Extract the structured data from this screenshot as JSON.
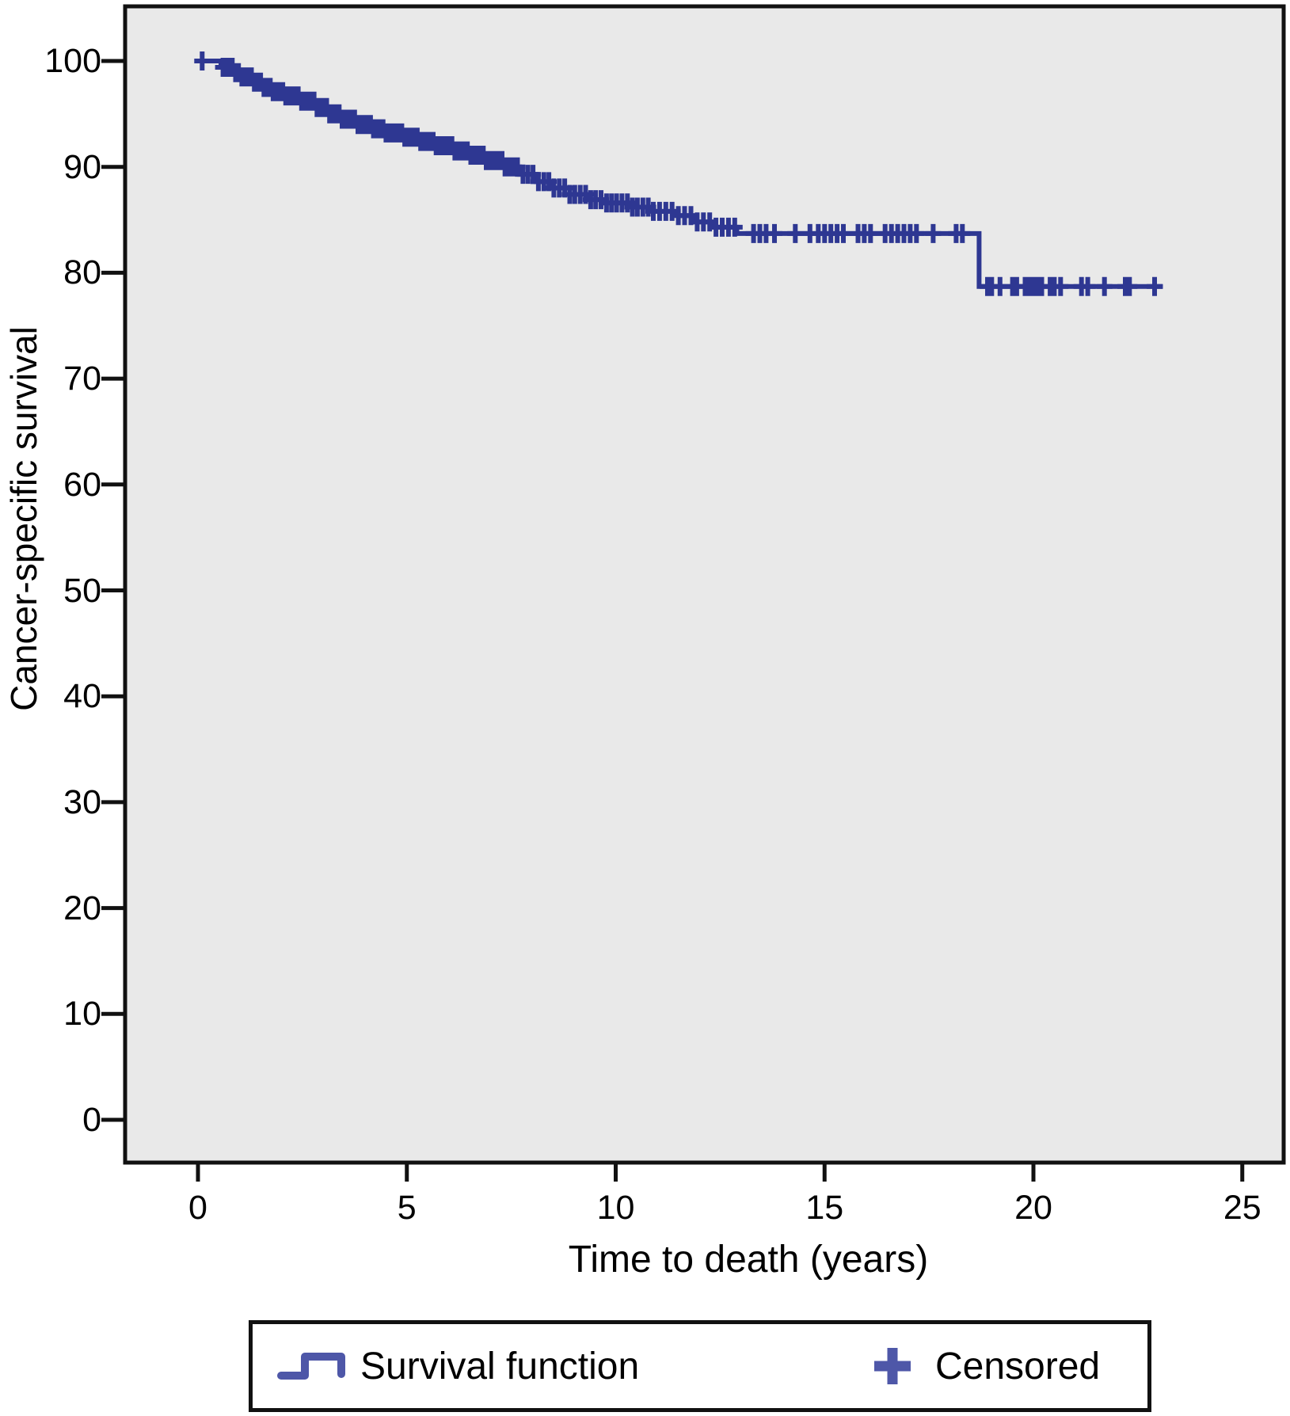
{
  "chart_data": {
    "type": "line",
    "subtype": "kaplan_meier_step",
    "title": "",
    "xlabel": "Time to death (years)",
    "ylabel": "Cancer-specific survival",
    "xlim": [
      0,
      26
    ],
    "ylim": [
      0,
      100
    ],
    "x_ticks": [
      0,
      5,
      10,
      15,
      20,
      25
    ],
    "y_ticks": [
      100,
      90,
      80,
      70,
      60,
      50,
      40,
      30,
      20,
      10,
      0
    ],
    "grid": false,
    "legend_position": "bottom",
    "series": [
      {
        "name": "Survival function",
        "type": "step",
        "color": "#2e3792",
        "points": [
          [
            0,
            100
          ],
          [
            0.55,
            99.4
          ],
          [
            0.85,
            98.9
          ],
          [
            1.05,
            98.5
          ],
          [
            1.3,
            98.0
          ],
          [
            1.55,
            97.5
          ],
          [
            1.8,
            97.1
          ],
          [
            2.1,
            96.7
          ],
          [
            2.45,
            96.2
          ],
          [
            2.8,
            95.6
          ],
          [
            3.1,
            95.0
          ],
          [
            3.45,
            94.5
          ],
          [
            3.8,
            94.0
          ],
          [
            4.15,
            93.6
          ],
          [
            4.5,
            93.2
          ],
          [
            4.9,
            92.8
          ],
          [
            5.3,
            92.4
          ],
          [
            5.7,
            92.0
          ],
          [
            6.1,
            91.5
          ],
          [
            6.5,
            91.1
          ],
          [
            6.9,
            90.6
          ],
          [
            7.3,
            90.0
          ],
          [
            7.7,
            89.3
          ],
          [
            8.1,
            88.6
          ],
          [
            8.5,
            88.0
          ],
          [
            8.9,
            87.4
          ],
          [
            9.3,
            86.9
          ],
          [
            9.7,
            86.6
          ],
          [
            10.3,
            86.2
          ],
          [
            10.9,
            85.8
          ],
          [
            11.5,
            85.4
          ],
          [
            11.9,
            84.8
          ],
          [
            12.3,
            84.3
          ],
          [
            12.9,
            83.7
          ],
          [
            18.7,
            78.7
          ]
        ],
        "end_time": 23.1
      }
    ],
    "censored": {
      "name": "Censored",
      "marker": "plus",
      "times": [
        0.1,
        0.6,
        0.68,
        0.75,
        0.82,
        0.9,
        0.97,
        1.05,
        1.12,
        1.2,
        1.28,
        1.35,
        1.43,
        1.5,
        1.58,
        1.65,
        1.73,
        1.8,
        1.88,
        1.95,
        2.03,
        2.1,
        2.18,
        2.25,
        2.33,
        2.4,
        2.48,
        2.55,
        2.63,
        2.7,
        2.78,
        2.85,
        2.93,
        3.0,
        3.08,
        3.15,
        3.23,
        3.3,
        3.38,
        3.45,
        3.53,
        3.6,
        3.68,
        3.75,
        3.83,
        3.9,
        3.98,
        4.05,
        4.13,
        4.2,
        4.28,
        4.35,
        4.43,
        4.5,
        4.58,
        4.65,
        4.73,
        4.8,
        4.88,
        4.95,
        5.03,
        5.1,
        5.18,
        5.25,
        5.33,
        5.4,
        5.48,
        5.55,
        5.63,
        5.7,
        5.78,
        5.85,
        5.93,
        6.0,
        6.08,
        6.15,
        6.23,
        6.3,
        6.38,
        6.45,
        6.53,
        6.6,
        6.68,
        6.75,
        6.83,
        6.9,
        6.98,
        7.05,
        7.13,
        7.2,
        7.28,
        7.35,
        7.45,
        7.55,
        7.65,
        7.78,
        7.9,
        8.02,
        8.15,
        8.28,
        8.4,
        8.52,
        8.65,
        8.78,
        8.9,
        9.02,
        9.15,
        9.28,
        9.4,
        9.52,
        9.65,
        9.78,
        9.9,
        10.02,
        10.15,
        10.28,
        10.4,
        10.52,
        10.65,
        10.78,
        10.9,
        11.05,
        11.2,
        11.35,
        11.5,
        11.65,
        11.8,
        11.95,
        12.1,
        12.25,
        12.4,
        12.55,
        12.7,
        12.85,
        13.3,
        13.45,
        13.6,
        13.8,
        14.3,
        14.65,
        14.85,
        15.0,
        15.15,
        15.3,
        15.45,
        15.8,
        15.95,
        16.1,
        16.45,
        16.6,
        16.75,
        16.9,
        17.05,
        17.2,
        17.6,
        18.15,
        18.3,
        18.9,
        19.0,
        19.2,
        19.5,
        19.6,
        19.8,
        19.9,
        20.0,
        20.1,
        20.2,
        20.4,
        20.5,
        20.65,
        21.15,
        21.3,
        21.7,
        22.2,
        22.3,
        22.9
      ]
    }
  },
  "colors": {
    "curve": "#2e3792",
    "legend_symbol": "#4e57a8",
    "plot_background": "#e9e9e9",
    "frame": "#111111",
    "page_background": "#ffffff",
    "text": "#000000"
  }
}
